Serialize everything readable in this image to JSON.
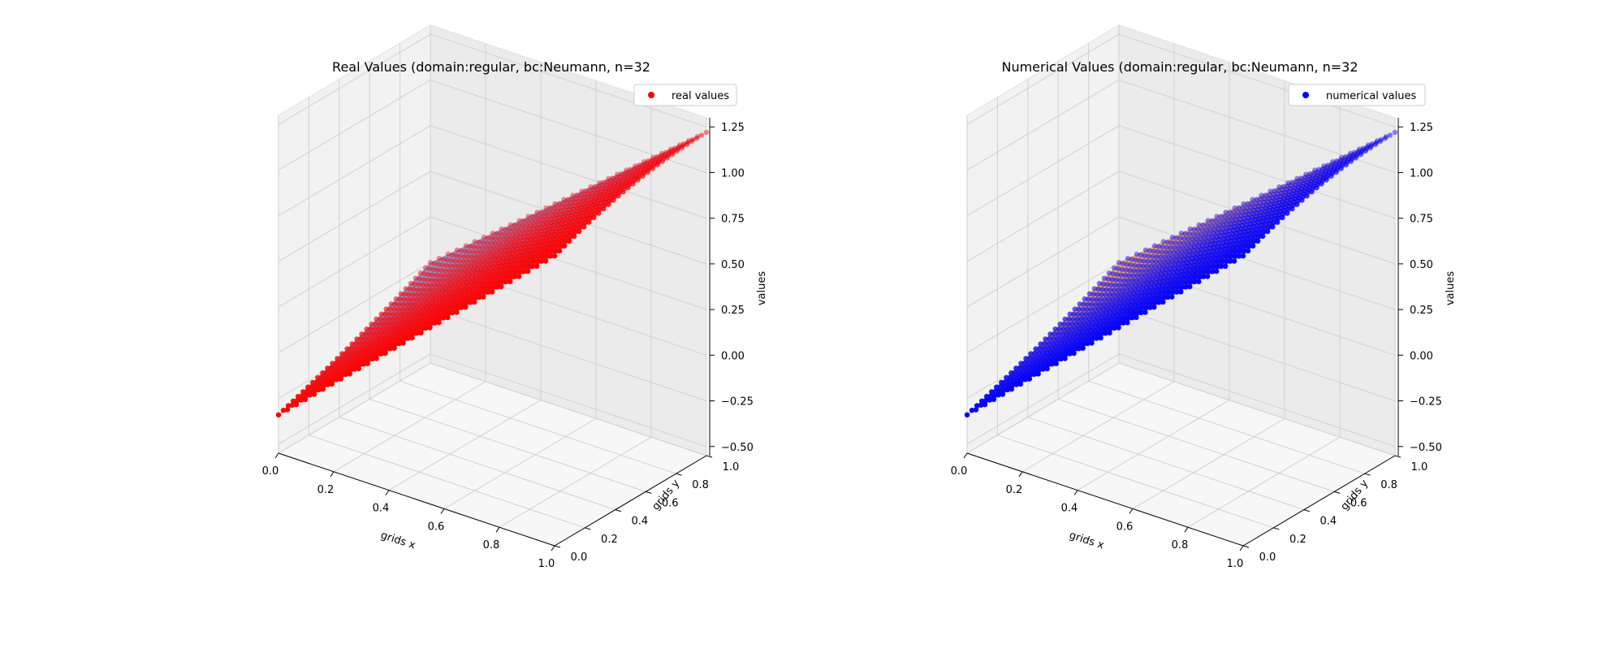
{
  "figure": {
    "background": "#ffffff"
  },
  "chart_data": [
    {
      "type": "scatter3d",
      "title": "Real Values (domain:regular, bc:Neumann, n=32",
      "xlabel": "grids x",
      "ylabel": "grids y",
      "zlabel": "values",
      "xlim": [
        0,
        1
      ],
      "ylim": [
        0,
        1
      ],
      "zlim": [
        -0.55,
        1.3
      ],
      "xticks": [
        "0.0",
        "0.2",
        "0.4",
        "0.6",
        "0.8",
        "1.0"
      ],
      "yticks": [
        "0.0",
        "0.2",
        "0.4",
        "0.6",
        "0.8",
        "1.0"
      ],
      "zticks": [
        "−0.50",
        "−0.25",
        "0.00",
        "0.25",
        "0.50",
        "0.75",
        "1.00",
        "1.25"
      ],
      "grid": true,
      "legend_position": "top-right",
      "n": 32,
      "surface": "z = x at y = 1 (about 1.22 at x = 1), falling to about -0.4 at (0, 0)",
      "series": [
        {
          "name": "real values",
          "color": "#ff0000",
          "surface_color": "#7f8fd0"
        }
      ]
    },
    {
      "type": "scatter3d",
      "title": "Numerical Values (domain:regular, bc:Neumann, n=32",
      "xlabel": "grids x",
      "ylabel": "grids y",
      "zlabel": "values",
      "xlim": [
        0,
        1
      ],
      "ylim": [
        0,
        1
      ],
      "zlim": [
        -0.55,
        1.3
      ],
      "xticks": [
        "0.0",
        "0.2",
        "0.4",
        "0.6",
        "0.8",
        "1.0"
      ],
      "yticks": [
        "0.0",
        "0.2",
        "0.4",
        "0.6",
        "0.8",
        "1.0"
      ],
      "zticks": [
        "−0.50",
        "−0.25",
        "0.00",
        "0.25",
        "0.50",
        "0.75",
        "1.00",
        "1.25"
      ],
      "grid": true,
      "legend_position": "top-right",
      "n": 32,
      "surface": "z = x at y = 1 (about 1.22 at x = 1), falling to about -0.4 at (0, 0)",
      "series": [
        {
          "name": "numerical values",
          "color": "#0000ff",
          "surface_color": "#f2a060"
        }
      ]
    }
  ]
}
